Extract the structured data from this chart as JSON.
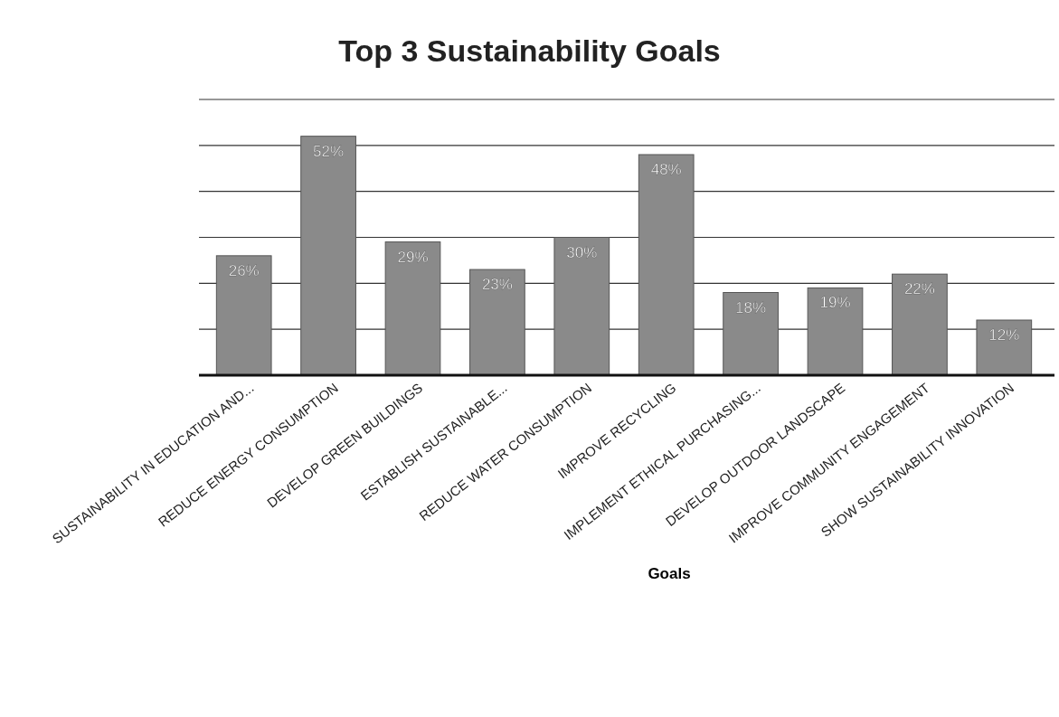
{
  "chart_data": {
    "type": "bar",
    "title": "Top 3 Sustainability Goals",
    "xlabel": "Goals",
    "categories": [
      "SUSTAINABILITY IN EDUCATION AND...",
      "REDUCE ENERGY CONSUMPTION",
      "DEVELOP GREEN BUILDINGS",
      "ESTABLISH SUSTAINABLE...",
      "REDUCE WATER CONSUMPTION",
      "IMPROVE RECYCLING",
      "IMPLEMENT ETHICAL PURCHASING...",
      "DEVELOP OUTDOOR LANDSCAPE",
      "IMPROVE COMMUNITY ENGAGEMENT",
      "SHOW SUSTAINABILITY INNOVATION"
    ],
    "values": [
      26,
      52,
      29,
      23,
      30,
      48,
      18,
      19,
      22,
      12
    ],
    "value_labels": [
      "26%",
      "52%",
      "29%",
      "23%",
      "30%",
      "48%",
      "18%",
      "19%",
      "22%",
      "12%"
    ],
    "color": "#8a8a8a",
    "ylim": [
      0,
      60
    ],
    "yticks": [
      {
        "value": 10,
        "label": null
      },
      {
        "value": 20,
        "label": null
      },
      {
        "value": 30,
        "label": null
      },
      {
        "value": 40,
        "label": null
      },
      {
        "value": 50,
        "label": null
      },
      {
        "value": 60,
        "label": null
      }
    ],
    "grid": "y",
    "tick_labels": "x"
  }
}
